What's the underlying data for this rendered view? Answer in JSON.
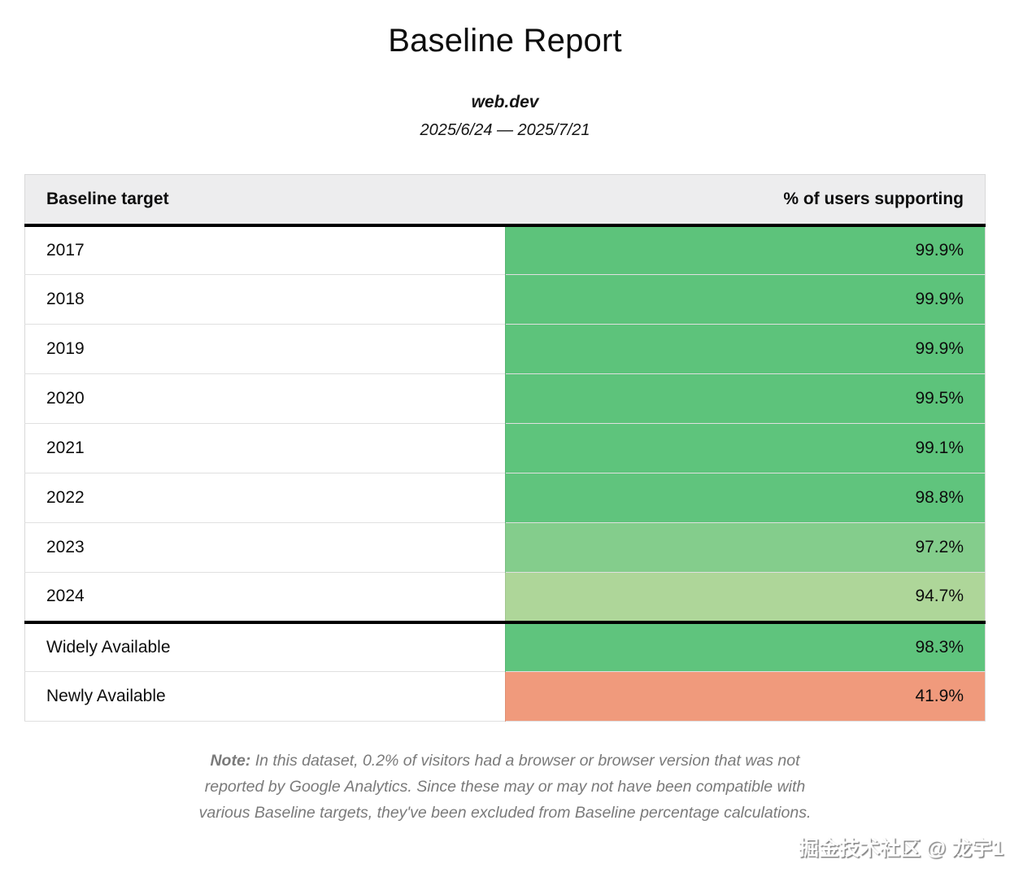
{
  "header": {
    "title": "Baseline Report",
    "site": "web.dev",
    "date_range": "2025/6/24 — 2025/7/21"
  },
  "table": {
    "columns": [
      "Baseline target",
      "% of users supporting"
    ],
    "rows": [
      {
        "label": "2017",
        "value": "99.9%",
        "color": "#5dc37b"
      },
      {
        "label": "2018",
        "value": "99.9%",
        "color": "#5dc37b"
      },
      {
        "label": "2019",
        "value": "99.9%",
        "color": "#5dc37b"
      },
      {
        "label": "2020",
        "value": "99.5%",
        "color": "#5dc37b"
      },
      {
        "label": "2021",
        "value": "99.1%",
        "color": "#5ec47c"
      },
      {
        "label": "2022",
        "value": "98.8%",
        "color": "#60c47d"
      },
      {
        "label": "2023",
        "value": "97.2%",
        "color": "#84cd8c"
      },
      {
        "label": "2024",
        "value": "94.7%",
        "color": "#aed699"
      },
      {
        "label": "Widely Available",
        "value": "98.3%",
        "color": "#5fc47d"
      },
      {
        "label": "Newly Available",
        "value": "41.9%",
        "color": "#f09a7c"
      }
    ]
  },
  "chart_data": {
    "type": "table",
    "title": "Baseline Report",
    "subtitle": "web.dev",
    "date_range": "2025/6/24 — 2025/7/21",
    "columns": [
      "Baseline target",
      "% of users supporting"
    ],
    "categories": [
      "2017",
      "2018",
      "2019",
      "2020",
      "2021",
      "2022",
      "2023",
      "2024",
      "Widely Available",
      "Newly Available"
    ],
    "values": [
      99.9,
      99.9,
      99.9,
      99.5,
      99.1,
      98.8,
      97.2,
      94.7,
      98.3,
      41.9
    ],
    "unit": "%",
    "cell_colors": [
      "#5dc37b",
      "#5dc37b",
      "#5dc37b",
      "#5dc37b",
      "#5ec47c",
      "#60c47d",
      "#84cd8c",
      "#aed699",
      "#5fc47d",
      "#f09a7c"
    ],
    "layout_hints": {
      "value_column_colored": true,
      "thick_divider_after_header": true,
      "thick_divider_before_row": "Widely Available",
      "header_background": "#ededee"
    }
  },
  "note": {
    "prefix": "Note:",
    "lines": [
      "In this dataset, 0.2% of visitors had a browser or browser version that was not",
      "reported by Google Analytics. Since these may or may not have been compatible with",
      "various Baseline targets, they've been excluded from Baseline percentage calculations."
    ]
  },
  "watermark": {
    "text": "掘金技术社区 @ 龙宇1"
  },
  "colors": {
    "green_strong": "#5dc37b",
    "green_mid": "#84cd8c",
    "green_light": "#aed699",
    "salmon": "#f09a7c",
    "header_bg": "#ededee",
    "note_text": "#7a7a7a"
  }
}
